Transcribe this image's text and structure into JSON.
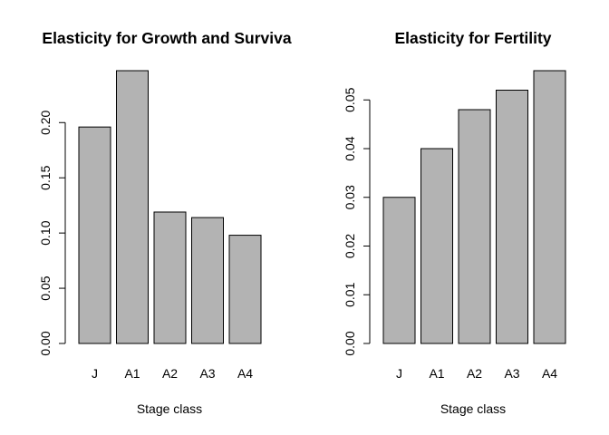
{
  "chart_data": [
    {
      "type": "bar",
      "title": "Elasticity for Growth and Surviva",
      "xlabel": "Stage class",
      "ylabel": "",
      "categories": [
        "J",
        "A1",
        "A2",
        "A3",
        "A4"
      ],
      "values": [
        0.196,
        0.247,
        0.119,
        0.114,
        0.098
      ],
      "ylim": [
        0,
        0.247
      ],
      "yticks": [
        "0.00",
        "0.05",
        "0.10",
        "0.15",
        "0.20"
      ],
      "grid": false,
      "bar_color": "#b3b3b3"
    },
    {
      "type": "bar",
      "title": "Elasticity for Fertility",
      "xlabel": "Stage class",
      "ylabel": "",
      "categories": [
        "J",
        "A1",
        "A2",
        "A3",
        "A4"
      ],
      "values": [
        0.03,
        0.04,
        0.048,
        0.052,
        0.056
      ],
      "ylim": [
        0,
        0.056
      ],
      "yticks": [
        "0.00",
        "0.01",
        "0.02",
        "0.03",
        "0.04",
        "0.05"
      ],
      "grid": false,
      "bar_color": "#b3b3b3"
    }
  ]
}
